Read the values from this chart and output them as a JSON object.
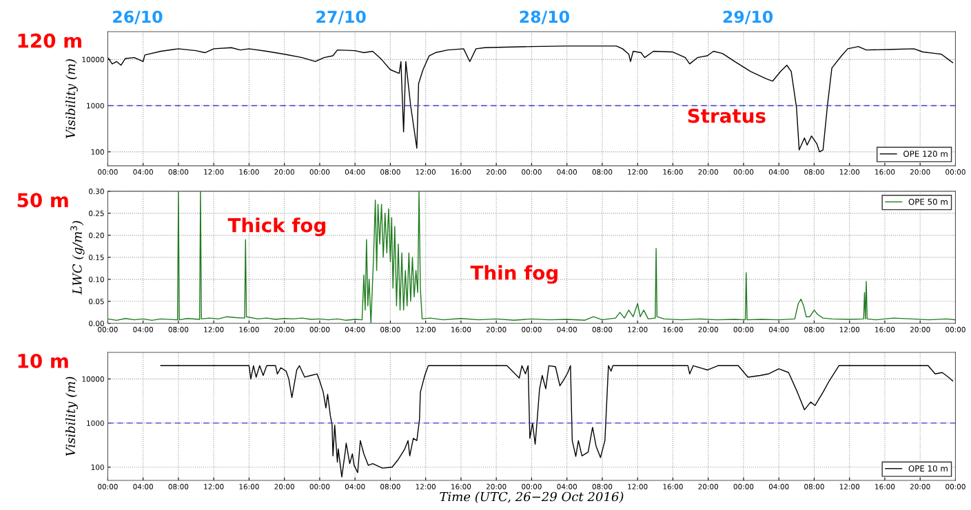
{
  "chart_data": [
    {
      "type": "line",
      "title": "120 m",
      "ylabel": "Visibility (m)",
      "log": true,
      "grid": true,
      "legend": "bottom right",
      "xlim": [
        "2016-10-26T00:00",
        "2016-10-30T00:00"
      ],
      "ylim": [
        50,
        40000
      ],
      "yticks": [
        100,
        1000,
        10000
      ],
      "xticks": [
        {
          "value": "2016-10-26T00:00",
          "label": "00:00"
        },
        {
          "value": "2016-10-26T04:00",
          "label": "04:00"
        },
        {
          "value": "2016-10-26T08:00",
          "label": "08:00"
        },
        {
          "value": "2016-10-26T12:00",
          "label": "12:00"
        },
        {
          "value": "2016-10-26T16:00",
          "label": "16:00"
        },
        {
          "value": "2016-10-26T20:00",
          "label": "20:00"
        },
        {
          "value": "2016-10-27T00:00",
          "label": "00:00"
        },
        {
          "value": "2016-10-27T04:00",
          "label": "04:00"
        },
        {
          "value": "2016-10-27T08:00",
          "label": "08:00"
        },
        {
          "value": "2016-10-27T12:00",
          "label": "12:00"
        },
        {
          "value": "2016-10-27T16:00",
          "label": "16:00"
        },
        {
          "value": "2016-10-27T20:00",
          "label": "20:00"
        },
        {
          "value": "2016-10-28T00:00",
          "label": "00:00"
        },
        {
          "value": "2016-10-28T04:00",
          "label": "04:00"
        },
        {
          "value": "2016-10-28T08:00",
          "label": "08:00"
        },
        {
          "value": "2016-10-28T12:00",
          "label": "12:00"
        },
        {
          "value": "2016-10-28T16:00",
          "label": "16:00"
        },
        {
          "value": "2016-10-28T20:00",
          "label": "20:00"
        },
        {
          "value": "2016-10-29T00:00",
          "label": "00:00"
        },
        {
          "value": "2016-10-29T04:00",
          "label": "04:00"
        },
        {
          "value": "2016-10-29T08:00",
          "label": "08:00"
        },
        {
          "value": "2016-10-29T12:00",
          "label": "12:00"
        },
        {
          "value": "2016-10-29T16:00",
          "label": "16:00"
        },
        {
          "value": "2016-10-29T20:00",
          "label": "20:00"
        },
        {
          "value": "2016-10-30T00:00",
          "label": "00:00"
        }
      ],
      "ref_lines": [
        {
          "axis": "y",
          "value": 1000,
          "color": "#3a3acf",
          "line_style": "dashed"
        }
      ],
      "annotations": [
        "26/10",
        "27/10",
        "28/10",
        "29/10",
        "Stratus"
      ],
      "series": [
        {
          "name": "OPE 120 m",
          "color": "#000000",
          "x": [
            "2016-10-26T00:00",
            "2016-10-26T00:30",
            "2016-10-26T01:00",
            "2016-10-26T01:30",
            "2016-10-26T02:00",
            "2016-10-26T03:00",
            "2016-10-26T04:00",
            "2016-10-26T04:12",
            "2016-10-26T06:00",
            "2016-10-26T08:00",
            "2016-10-26T10:00",
            "2016-10-26T11:00",
            "2016-10-26T12:00",
            "2016-10-26T14:00",
            "2016-10-26T15:00",
            "2016-10-26T16:00",
            "2016-10-26T18:00",
            "2016-10-26T20:00",
            "2016-10-26T22:00",
            "2016-10-26T23:30",
            "2016-10-27T00:30",
            "2016-10-27T01:30",
            "2016-10-27T02:00",
            "2016-10-27T04:00",
            "2016-10-27T05:00",
            "2016-10-27T06:00",
            "2016-10-27T07:00",
            "2016-10-27T08:00",
            "2016-10-27T09:00",
            "2016-10-27T09:12",
            "2016-10-27T09:30",
            "2016-10-27T09:45",
            "2016-10-27T10:18",
            "2016-10-27T11:00",
            "2016-10-27T11:12",
            "2016-10-27T11:42",
            "2016-10-27T12:24",
            "2016-10-27T13:06",
            "2016-10-27T14:30",
            "2016-10-27T16:18",
            "2016-10-27T17:00",
            "2016-10-27T17:42",
            "2016-10-27T18:42",
            "2016-10-28T00:00",
            "2016-10-28T03:54",
            "2016-10-28T09:36",
            "2016-10-28T10:18",
            "2016-10-28T11:00",
            "2016-10-28T11:12",
            "2016-10-28T11:30",
            "2016-10-28T12:24",
            "2016-10-28T12:48",
            "2016-10-28T13:48",
            "2016-10-28T16:00",
            "2016-10-28T17:24",
            "2016-10-28T17:54",
            "2016-10-28T18:48",
            "2016-10-28T19:54",
            "2016-10-28T20:36",
            "2016-10-28T21:36",
            "2016-10-28T23:00",
            "2016-10-29T00:48",
            "2016-10-29T02:36",
            "2016-10-29T03:18",
            "2016-10-29T04:12",
            "2016-10-29T04:54",
            "2016-10-29T05:24",
            "2016-10-29T06:00",
            "2016-10-29T06:18",
            "2016-10-29T06:54",
            "2016-10-29T07:12",
            "2016-10-29T07:42",
            "2016-10-29T08:18",
            "2016-10-29T08:36",
            "2016-10-29T09:00",
            "2016-10-29T09:30",
            "2016-10-29T10:00",
            "2016-10-29T11:06",
            "2016-10-29T11:48",
            "2016-10-29T13:00",
            "2016-10-29T13:54",
            "2016-10-29T16:48",
            "2016-10-29T19:18",
            "2016-10-29T20:18",
            "2016-10-29T21:42",
            "2016-10-29T22:24",
            "2016-10-29T23:12",
            "2016-10-29T23:42"
          ],
          "values": [
            11000,
            8000,
            9000,
            7500,
            10500,
            11000,
            9000,
            12500,
            15000,
            17000,
            15500,
            14000,
            17000,
            18000,
            16000,
            17000,
            15000,
            13000,
            11000,
            9000,
            11000,
            12000,
            16000,
            15500,
            14000,
            15000,
            10000,
            6000,
            5000,
            9000,
            270,
            9000,
            1000,
            120,
            3000,
            6000,
            12000,
            14000,
            16000,
            17000,
            9000,
            17000,
            18000,
            19000,
            19500,
            19500,
            17000,
            13000,
            9000,
            15000,
            14000,
            11000,
            15000,
            14500,
            11000,
            8000,
            11000,
            12000,
            15000,
            13500,
            9000,
            5500,
            3800,
            3400,
            5500,
            7500,
            5500,
            900,
            110,
            200,
            140,
            220,
            150,
            100,
            110,
            1000,
            6500,
            12000,
            17000,
            19000,
            16000,
            16500,
            17000,
            14500,
            13500,
            13000,
            10000,
            8500
          ]
        }
      ]
    },
    {
      "type": "line",
      "title": "50 m",
      "ylabel": "LWC (g/m$^{3}$)",
      "grid": true,
      "legend": "top right",
      "xlim": [
        "2016-10-26T00:00",
        "2016-10-30T00:00"
      ],
      "ylim": [
        0,
        0.3
      ],
      "yticks": [
        {
          "value": 0,
          "label": "0.00"
        },
        {
          "value": 0.05,
          "label": "0.05"
        },
        {
          "value": 0.1,
          "label": "0.10"
        },
        {
          "value": 0.15,
          "label": "0.15"
        },
        {
          "value": 0.2,
          "label": "0.20"
        },
        {
          "value": 0.25,
          "label": "0.25"
        },
        {
          "value": 0.3,
          "label": "0.30"
        }
      ],
      "xticks": [
        {
          "value": "2016-10-26T00:00",
          "label": "00:00"
        },
        {
          "value": "2016-10-26T04:00",
          "label": "04:00"
        },
        {
          "value": "2016-10-26T08:00",
          "label": "08:00"
        },
        {
          "value": "2016-10-26T12:00",
          "label": "12:00"
        },
        {
          "value": "2016-10-26T16:00",
          "label": "16:00"
        },
        {
          "value": "2016-10-26T20:00",
          "label": "20:00"
        },
        {
          "value": "2016-10-27T00:00",
          "label": "00:00"
        },
        {
          "value": "2016-10-27T04:00",
          "label": "04:00"
        },
        {
          "value": "2016-10-27T08:00",
          "label": "08:00"
        },
        {
          "value": "2016-10-27T12:00",
          "label": "12:00"
        },
        {
          "value": "2016-10-27T16:00",
          "label": "16:00"
        },
        {
          "value": "2016-10-27T20:00",
          "label": "20:00"
        },
        {
          "value": "2016-10-28T00:00",
          "label": "00:00"
        },
        {
          "value": "2016-10-28T04:00",
          "label": "04:00"
        },
        {
          "value": "2016-10-28T08:00",
          "label": "08:00"
        },
        {
          "value": "2016-10-28T12:00",
          "label": "12:00"
        },
        {
          "value": "2016-10-28T16:00",
          "label": "16:00"
        },
        {
          "value": "2016-10-28T20:00",
          "label": "20:00"
        },
        {
          "value": "2016-10-29T00:00",
          "label": "00:00"
        },
        {
          "value": "2016-10-29T04:00",
          "label": "04:00"
        },
        {
          "value": "2016-10-29T08:00",
          "label": "08:00"
        },
        {
          "value": "2016-10-29T12:00",
          "label": "12:00"
        },
        {
          "value": "2016-10-29T16:00",
          "label": "16:00"
        },
        {
          "value": "2016-10-29T20:00",
          "label": "20:00"
        },
        {
          "value": "2016-10-30T00:00",
          "label": "00:00"
        }
      ],
      "annotations": [
        "Thick fog",
        "Thin fog"
      ],
      "series": [
        {
          "name": "OPE 50 m",
          "color": "#1e7b1e",
          "x": [
            "2016-10-26T00:00",
            "2016-10-26T01:00",
            "2016-10-26T02:00",
            "2016-10-26T03:00",
            "2016-10-26T04:00",
            "2016-10-26T05:00",
            "2016-10-26T06:00",
            "2016-10-26T07:54",
            "2016-10-26T08:00",
            "2016-10-26T08:06",
            "2016-10-26T09:00",
            "2016-10-26T10:24",
            "2016-10-26T10:30",
            "2016-10-26T10:36",
            "2016-10-26T11:30",
            "2016-10-26T12:30",
            "2016-10-26T13:30",
            "2016-10-26T14:30",
            "2016-10-26T15:30",
            "2016-10-26T15:36",
            "2016-10-26T15:42",
            "2016-10-26T17:00",
            "2016-10-26T18:00",
            "2016-10-26T19:00",
            "2016-10-26T20:00",
            "2016-10-26T21:00",
            "2016-10-26T22:00",
            "2016-10-26T23:00",
            "2016-10-27T00:00",
            "2016-10-27T01:00",
            "2016-10-27T02:00",
            "2016-10-27T03:00",
            "2016-10-27T04:00",
            "2016-10-27T04:48",
            "2016-10-27T05:00",
            "2016-10-27T05:09",
            "2016-10-27T05:18",
            "2016-10-27T05:27",
            "2016-10-27T05:36",
            "2016-10-27T05:48",
            "2016-10-27T06:06",
            "2016-10-27T06:18",
            "2016-10-27T06:27",
            "2016-10-27T06:36",
            "2016-10-27T06:48",
            "2016-10-27T07:00",
            "2016-10-27T07:12",
            "2016-10-27T07:24",
            "2016-10-27T07:36",
            "2016-10-27T07:48",
            "2016-10-27T08:00",
            "2016-10-27T08:09",
            "2016-10-27T08:18",
            "2016-10-27T08:30",
            "2016-10-27T08:42",
            "2016-10-27T08:54",
            "2016-10-27T09:06",
            "2016-10-27T09:18",
            "2016-10-27T09:30",
            "2016-10-27T09:42",
            "2016-10-27T09:54",
            "2016-10-27T10:06",
            "2016-10-27T10:18",
            "2016-10-27T10:30",
            "2016-10-27T10:42",
            "2016-10-27T10:54",
            "2016-10-27T11:06",
            "2016-10-27T11:15",
            "2016-10-27T11:24",
            "2016-10-27T11:36",
            "2016-10-27T12:30",
            "2016-10-27T14:00",
            "2016-10-27T16:00",
            "2016-10-27T18:00",
            "2016-10-27T20:00",
            "2016-10-27T22:00",
            "2016-10-28T00:00",
            "2016-10-28T02:00",
            "2016-10-28T04:00",
            "2016-10-28T06:00",
            "2016-10-28T07:00",
            "2016-10-28T08:00",
            "2016-10-28T09:30",
            "2016-10-28T10:00",
            "2016-10-28T10:30",
            "2016-10-28T11:00",
            "2016-10-28T11:30",
            "2016-10-28T12:00",
            "2016-10-28T12:18",
            "2016-10-28T12:42",
            "2016-10-28T13:12",
            "2016-10-28T14:00",
            "2016-10-28T14:06",
            "2016-10-28T14:12",
            "2016-10-28T15:00",
            "2016-10-28T17:00",
            "2016-10-28T19:00",
            "2016-10-28T21:00",
            "2016-10-28T23:00",
            "2016-10-29T00:12",
            "2016-10-29T00:18",
            "2016-10-29T00:24",
            "2016-10-29T02:00",
            "2016-10-29T04:00",
            "2016-10-29T05:48",
            "2016-10-29T06:12",
            "2016-10-29T06:30",
            "2016-10-29T06:48",
            "2016-10-29T07:06",
            "2016-10-29T07:30",
            "2016-10-29T08:00",
            "2016-10-29T08:24",
            "2016-10-29T09:00",
            "2016-10-29T10:00",
            "2016-10-29T12:00",
            "2016-10-29T13:36",
            "2016-10-29T13:42",
            "2016-10-29T13:48",
            "2016-10-29T13:54",
            "2016-10-29T14:00",
            "2016-10-29T15:00",
            "2016-10-29T17:00",
            "2016-10-29T19:00",
            "2016-10-29T21:00",
            "2016-10-29T23:00",
            "2016-10-30T00:00"
          ],
          "values": [
            0.01,
            0.007,
            0.011,
            0.008,
            0.01,
            0.007,
            0.01,
            0.008,
            0.3,
            0.008,
            0.011,
            0.009,
            0.3,
            0.01,
            0.012,
            0.01,
            0.015,
            0.013,
            0.012,
            0.19,
            0.015,
            0.01,
            0.012,
            0.009,
            0.011,
            0.01,
            0.012,
            0.009,
            0.01,
            0.008,
            0.01,
            0.007,
            0.009,
            0.008,
            0.11,
            0.03,
            0.19,
            0.04,
            0.1,
            0.0,
            0.15,
            0.28,
            0.12,
            0.27,
            0.18,
            0.27,
            0.15,
            0.25,
            0.16,
            0.26,
            0.14,
            0.24,
            0.08,
            0.22,
            0.04,
            0.18,
            0.03,
            0.16,
            0.03,
            0.12,
            0.04,
            0.16,
            0.05,
            0.15,
            0.06,
            0.12,
            0.07,
            0.3,
            0.08,
            0.01,
            0.012,
            0.008,
            0.011,
            0.008,
            0.01,
            0.007,
            0.01,
            0.008,
            0.009,
            0.007,
            0.015,
            0.008,
            0.012,
            0.025,
            0.012,
            0.03,
            0.015,
            0.045,
            0.015,
            0.03,
            0.01,
            0.012,
            0.17,
            0.015,
            0.01,
            0.008,
            0.01,
            0.008,
            0.009,
            0.008,
            0.115,
            0.008,
            0.009,
            0.008,
            0.01,
            0.045,
            0.055,
            0.04,
            0.015,
            0.015,
            0.03,
            0.02,
            0.012,
            0.01,
            0.009,
            0.01,
            0.07,
            0.01,
            0.095,
            0.01,
            0.008,
            0.012,
            0.01,
            0.008,
            0.01,
            0.008
          ]
        }
      ]
    },
    {
      "type": "line",
      "title": "10 m",
      "ylabel": "Visibility (m)",
      "xlabel": "Time (UTC, 26−29 Oct 2016)",
      "log": true,
      "grid": true,
      "legend": "bottom right",
      "xlim": [
        "2016-10-26T00:00",
        "2016-10-30T00:00"
      ],
      "ylim": [
        50,
        40000
      ],
      "yticks": [
        100,
        1000,
        10000
      ],
      "xticks": [
        {
          "value": "2016-10-26T00:00",
          "label": "00:00"
        },
        {
          "value": "2016-10-26T04:00",
          "label": "04:00"
        },
        {
          "value": "2016-10-26T08:00",
          "label": "08:00"
        },
        {
          "value": "2016-10-26T12:00",
          "label": "12:00"
        },
        {
          "value": "2016-10-26T16:00",
          "label": "16:00"
        },
        {
          "value": "2016-10-26T20:00",
          "label": "20:00"
        },
        {
          "value": "2016-10-27T00:00",
          "label": "00:00"
        },
        {
          "value": "2016-10-27T04:00",
          "label": "04:00"
        },
        {
          "value": "2016-10-27T08:00",
          "label": "08:00"
        },
        {
          "value": "2016-10-27T12:00",
          "label": "12:00"
        },
        {
          "value": "2016-10-27T16:00",
          "label": "16:00"
        },
        {
          "value": "2016-10-27T20:00",
          "label": "20:00"
        },
        {
          "value": "2016-10-28T00:00",
          "label": "00:00"
        },
        {
          "value": "2016-10-28T04:00",
          "label": "04:00"
        },
        {
          "value": "2016-10-28T08:00",
          "label": "08:00"
        },
        {
          "value": "2016-10-28T12:00",
          "label": "12:00"
        },
        {
          "value": "2016-10-28T16:00",
          "label": "16:00"
        },
        {
          "value": "2016-10-28T20:00",
          "label": "20:00"
        },
        {
          "value": "2016-10-29T00:00",
          "label": "00:00"
        },
        {
          "value": "2016-10-29T04:00",
          "label": "04:00"
        },
        {
          "value": "2016-10-29T08:00",
          "label": "08:00"
        },
        {
          "value": "2016-10-29T12:00",
          "label": "12:00"
        },
        {
          "value": "2016-10-29T16:00",
          "label": "16:00"
        },
        {
          "value": "2016-10-29T20:00",
          "label": "20:00"
        },
        {
          "value": "2016-10-30T00:00",
          "label": "00:00"
        }
      ],
      "ref_lines": [
        {
          "axis": "y",
          "value": 1000,
          "color": "#3a3acf",
          "line_style": "dashed"
        }
      ],
      "series": [
        {
          "name": "OPE 10 m",
          "color": "#000000",
          "x": [
            "2016-10-26T06:00",
            "2016-10-26T16:00",
            "2016-10-26T16:12",
            "2016-10-26T16:30",
            "2016-10-26T16:48",
            "2016-10-26T17:12",
            "2016-10-26T17:36",
            "2016-10-26T18:00",
            "2016-10-26T19:00",
            "2016-10-26T19:12",
            "2016-10-26T19:36",
            "2016-10-26T20:12",
            "2016-10-26T20:30",
            "2016-10-26T20:51",
            "2016-10-26T21:24",
            "2016-10-26T21:42",
            "2016-10-26T22:18",
            "2016-10-26T23:00",
            "2016-10-26T23:42",
            "2016-10-27T00:00",
            "2016-10-27T00:24",
            "2016-10-27T00:42",
            "2016-10-27T00:54",
            "2016-10-27T01:12",
            "2016-10-27T01:24",
            "2016-10-27T01:30",
            "2016-10-27T01:42",
            "2016-10-27T02:00",
            "2016-10-27T02:06",
            "2016-10-27T02:30",
            "2016-10-27T02:54",
            "2016-10-27T03:00",
            "2016-10-27T03:24",
            "2016-10-27T03:42",
            "2016-10-27T03:54",
            "2016-10-27T04:18",
            "2016-10-27T04:36",
            "2016-10-27T05:00",
            "2016-10-27T05:30",
            "2016-10-27T06:00",
            "2016-10-27T07:06",
            "2016-10-27T08:12",
            "2016-10-27T08:54",
            "2016-10-27T09:36",
            "2016-10-27T10:00",
            "2016-10-27T10:12",
            "2016-10-27T10:36",
            "2016-10-27T11:00",
            "2016-10-27T11:18",
            "2016-10-27T11:24",
            "2016-10-27T11:54",
            "2016-10-27T12:18",
            "2016-10-27T21:12",
            "2016-10-27T22:36",
            "2016-10-27T22:54",
            "2016-10-27T23:18",
            "2016-10-27T23:36",
            "2016-10-27T23:48",
            "2016-10-28T00:06",
            "2016-10-28T00:24",
            "2016-10-28T00:36",
            "2016-10-28T00:54",
            "2016-10-28T01:12",
            "2016-10-28T01:36",
            "2016-10-28T01:57",
            "2016-10-28T02:42",
            "2016-10-28T03:12",
            "2016-10-28T03:42",
            "2016-10-28T04:06",
            "2016-10-28T04:24",
            "2016-10-28T04:36",
            "2016-10-28T05:00",
            "2016-10-28T05:18",
            "2016-10-28T05:42",
            "2016-10-28T06:24",
            "2016-10-28T06:54",
            "2016-10-28T07:18",
            "2016-10-28T07:48",
            "2016-10-28T08:18",
            "2016-10-28T08:42",
            "2016-10-28T09:00",
            "2016-10-28T09:12",
            "2016-10-28T17:42",
            "2016-10-28T17:54",
            "2016-10-28T18:18",
            "2016-10-28T19:54",
            "2016-10-28T21:06",
            "2016-10-28T23:24",
            "2016-10-29T00:30",
            "2016-10-29T01:54",
            "2016-10-29T02:48",
            "2016-10-29T04:00",
            "2016-10-29T05:06",
            "2016-10-29T06:06",
            "2016-10-29T06:54",
            "2016-10-29T07:36",
            "2016-10-29T08:06",
            "2016-10-29T09:00",
            "2016-10-29T09:42",
            "2016-10-29T10:48",
            "2016-10-29T20:54",
            "2016-10-29T21:42",
            "2016-10-29T22:30",
            "2016-10-29T23:12",
            "2016-10-29T23:42"
          ],
          "values": [
            20000,
            20000,
            10000,
            20000,
            11000,
            20000,
            12000,
            20000,
            20000,
            13000,
            18000,
            15000,
            10000,
            3800,
            16000,
            20000,
            11000,
            12000,
            13000,
            9000,
            5000,
            2200,
            4500,
            1500,
            900,
            180,
            900,
            130,
            260,
            60,
            230,
            350,
            120,
            200,
            110,
            75,
            400,
            200,
            110,
            120,
            95,
            100,
            150,
            250,
            400,
            180,
            450,
            400,
            1200,
            5000,
            12000,
            20000,
            20000,
            10500,
            20000,
            13000,
            20000,
            450,
            1000,
            330,
            1000,
            6000,
            12000,
            6000,
            20000,
            19000,
            7000,
            10000,
            14000,
            20000,
            400,
            175,
            400,
            180,
            220,
            800,
            300,
            165,
            400,
            20000,
            15000,
            20000,
            20000,
            13000,
            20000,
            16000,
            20000,
            20000,
            11000,
            12000,
            13000,
            17000,
            14000,
            5000,
            2000,
            3000,
            2500,
            5000,
            9000,
            20000,
            20000,
            13000,
            14000,
            11000,
            9000
          ]
        }
      ]
    }
  ]
}
